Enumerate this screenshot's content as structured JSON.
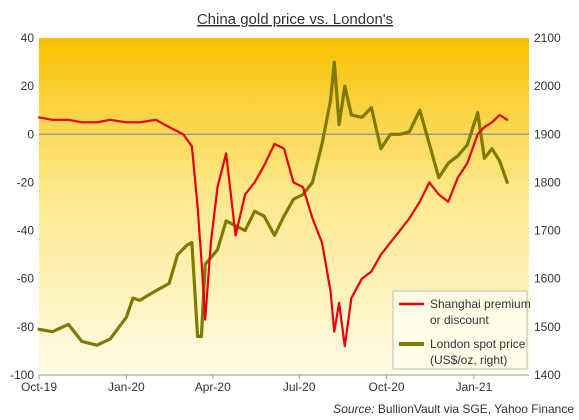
{
  "chart_data": {
    "type": "line",
    "title": "China gold price vs. London's",
    "source_label": "Source:",
    "source_text": "BullionVault via SGE, Yahoo Finance",
    "x_ticks": [
      "Oct-19",
      "Jan-20",
      "Apr-20",
      "Jul-20",
      "Oct-20",
      "Jan-21"
    ],
    "xlim": [
      "2019-10-01",
      "2021-02-28"
    ],
    "y_left": {
      "ticks": [
        "40",
        "20",
        "0",
        "-20",
        "-40",
        "-60",
        "-80",
        "-100"
      ],
      "ylim": [
        -100,
        40
      ]
    },
    "y_right": {
      "ticks": [
        "2100",
        "2000",
        "1900",
        "1800",
        "1700",
        "1600",
        "1500",
        "1400"
      ],
      "ylim": [
        1400,
        2100
      ]
    },
    "grid": false,
    "zero_line": true,
    "legend_position": "bottom-right",
    "colors": {
      "premium": "#e8000b",
      "london": "#7f7a00",
      "zero_line": "#9a9a9a",
      "bg_top": "#f7c000",
      "bg_bottom": "#fffbe6"
    },
    "series": [
      {
        "name": "Shanghai premium or discount",
        "legend_lines": [
          "Shanghai premium",
          "or discount"
        ],
        "axis": "left",
        "points": [
          [
            "2019-10-01",
            7
          ],
          [
            "2019-10-15",
            6
          ],
          [
            "2019-11-01",
            6
          ],
          [
            "2019-11-15",
            5
          ],
          [
            "2019-12-01",
            5
          ],
          [
            "2019-12-15",
            6
          ],
          [
            "2020-01-01",
            5
          ],
          [
            "2020-01-15",
            5
          ],
          [
            "2020-02-01",
            6
          ],
          [
            "2020-02-15",
            3
          ],
          [
            "2020-03-01",
            0
          ],
          [
            "2020-03-10",
            -5
          ],
          [
            "2020-03-16",
            -30
          ],
          [
            "2020-03-20",
            -52
          ],
          [
            "2020-03-24",
            -77
          ],
          [
            "2020-03-30",
            -45
          ],
          [
            "2020-04-06",
            -22
          ],
          [
            "2020-04-15",
            -8
          ],
          [
            "2020-04-25",
            -42
          ],
          [
            "2020-05-05",
            -25
          ],
          [
            "2020-05-15",
            -20
          ],
          [
            "2020-05-25",
            -13
          ],
          [
            "2020-06-05",
            -4
          ],
          [
            "2020-06-15",
            -6
          ],
          [
            "2020-06-25",
            -20
          ],
          [
            "2020-07-05",
            -22
          ],
          [
            "2020-07-15",
            -35
          ],
          [
            "2020-07-25",
            -45
          ],
          [
            "2020-08-03",
            -65
          ],
          [
            "2020-08-07",
            -82
          ],
          [
            "2020-08-12",
            -70
          ],
          [
            "2020-08-18",
            -88
          ],
          [
            "2020-08-25",
            -68
          ],
          [
            "2020-09-05",
            -60
          ],
          [
            "2020-09-15",
            -57
          ],
          [
            "2020-09-25",
            -50
          ],
          [
            "2020-10-05",
            -45
          ],
          [
            "2020-10-15",
            -40
          ],
          [
            "2020-10-25",
            -35
          ],
          [
            "2020-11-05",
            -28
          ],
          [
            "2020-11-15",
            -20
          ],
          [
            "2020-11-25",
            -25
          ],
          [
            "2020-12-05",
            -28
          ],
          [
            "2020-12-15",
            -18
          ],
          [
            "2020-12-25",
            -12
          ],
          [
            "2021-01-05",
            0
          ],
          [
            "2021-01-12",
            3
          ],
          [
            "2021-01-20",
            5
          ],
          [
            "2021-01-28",
            8
          ],
          [
            "2021-02-05",
            6
          ]
        ]
      },
      {
        "name": "London spot price (US$/oz, right)",
        "legend_lines": [
          "London spot price",
          "(US$/oz, right)"
        ],
        "axis": "right",
        "points": [
          [
            "2019-10-01",
            1495
          ],
          [
            "2019-10-15",
            1490
          ],
          [
            "2019-11-01",
            1505
          ],
          [
            "2019-11-15",
            1470
          ],
          [
            "2019-12-01",
            1462
          ],
          [
            "2019-12-15",
            1475
          ],
          [
            "2020-01-01",
            1520
          ],
          [
            "2020-01-08",
            1560
          ],
          [
            "2020-01-15",
            1555
          ],
          [
            "2020-02-01",
            1575
          ],
          [
            "2020-02-15",
            1590
          ],
          [
            "2020-02-24",
            1650
          ],
          [
            "2020-03-05",
            1670
          ],
          [
            "2020-03-10",
            1675
          ],
          [
            "2020-03-16",
            1480
          ],
          [
            "2020-03-20",
            1480
          ],
          [
            "2020-03-24",
            1630
          ],
          [
            "2020-04-06",
            1660
          ],
          [
            "2020-04-15",
            1720
          ],
          [
            "2020-04-25",
            1710
          ],
          [
            "2020-05-05",
            1700
          ],
          [
            "2020-05-15",
            1740
          ],
          [
            "2020-05-25",
            1730
          ],
          [
            "2020-06-05",
            1690
          ],
          [
            "2020-06-15",
            1730
          ],
          [
            "2020-06-25",
            1765
          ],
          [
            "2020-07-05",
            1775
          ],
          [
            "2020-07-15",
            1800
          ],
          [
            "2020-07-25",
            1880
          ],
          [
            "2020-08-03",
            1970
          ],
          [
            "2020-08-07",
            2050
          ],
          [
            "2020-08-12",
            1920
          ],
          [
            "2020-08-18",
            2000
          ],
          [
            "2020-08-25",
            1940
          ],
          [
            "2020-09-05",
            1935
          ],
          [
            "2020-09-15",
            1955
          ],
          [
            "2020-09-25",
            1870
          ],
          [
            "2020-10-05",
            1900
          ],
          [
            "2020-10-15",
            1900
          ],
          [
            "2020-10-25",
            1905
          ],
          [
            "2020-11-05",
            1950
          ],
          [
            "2020-11-15",
            1880
          ],
          [
            "2020-11-25",
            1810
          ],
          [
            "2020-12-05",
            1840
          ],
          [
            "2020-12-15",
            1855
          ],
          [
            "2020-12-25",
            1878
          ],
          [
            "2021-01-05",
            1945
          ],
          [
            "2021-01-12",
            1850
          ],
          [
            "2021-01-20",
            1870
          ],
          [
            "2021-01-28",
            1845
          ],
          [
            "2021-02-05",
            1800
          ]
        ]
      }
    ]
  }
}
